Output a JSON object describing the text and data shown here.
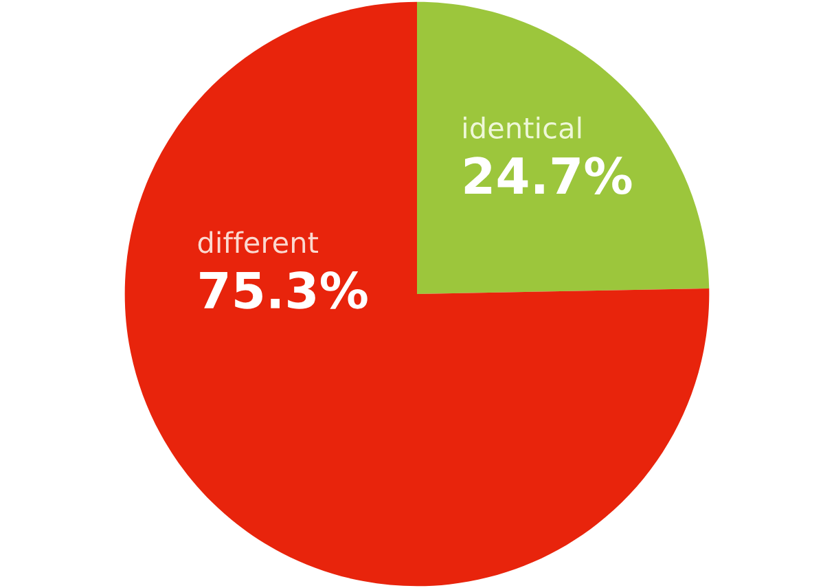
{
  "chart_data": {
    "type": "pie",
    "categories": [
      "identical",
      "different"
    ],
    "values": [
      24.7,
      75.3
    ],
    "value_labels": [
      "24.7%",
      "75.3%"
    ],
    "colors": [
      "#9cc63c",
      "#e8240c"
    ]
  }
}
